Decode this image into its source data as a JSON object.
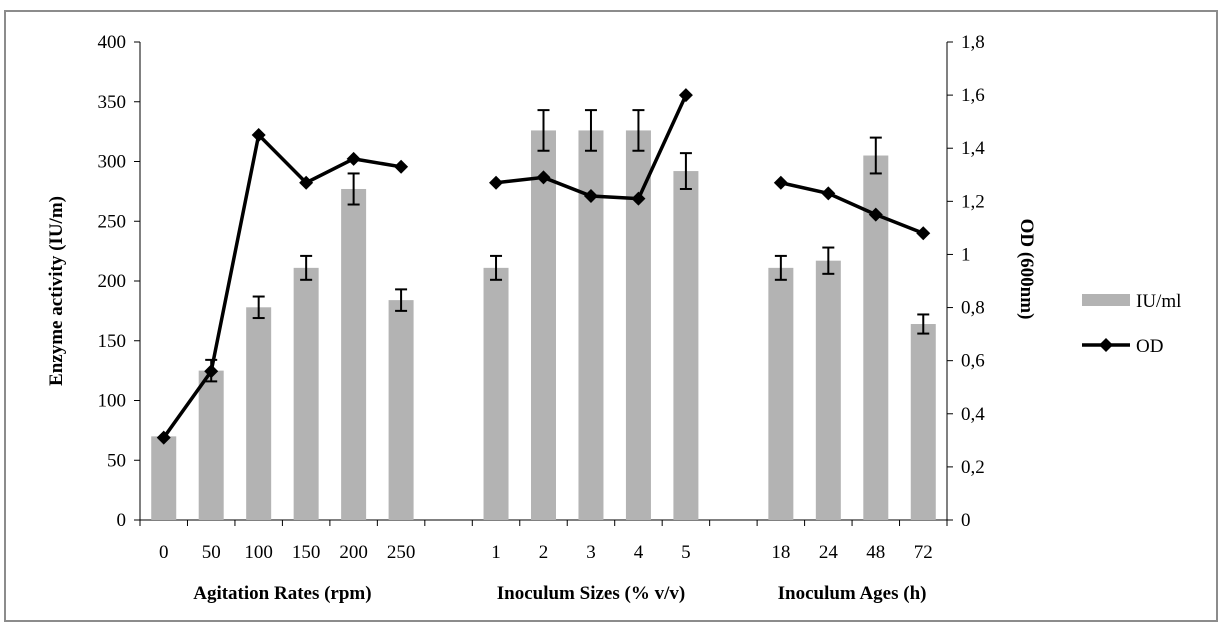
{
  "chart_data": {
    "type": "bar",
    "categories": [
      "0",
      "50",
      "100",
      "150",
      "200",
      "250",
      "",
      "1",
      "2",
      "3",
      "4",
      "5",
      "",
      "18",
      "24",
      "48",
      "72"
    ],
    "series": [
      {
        "name": "IU/ml",
        "kind": "bar",
        "axis": "left",
        "color": "#b3b3b3",
        "values": [
          70,
          125,
          178,
          211,
          277,
          184,
          null,
          211,
          326,
          326,
          326,
          292,
          null,
          211,
          217,
          305,
          164
        ],
        "error": [
          0,
          9,
          9,
          10,
          13,
          9,
          null,
          10,
          17,
          17,
          17,
          15,
          null,
          10,
          11,
          15,
          8
        ]
      },
      {
        "name": "OD",
        "kind": "line",
        "axis": "right",
        "color": "#000000",
        "marker": "diamond",
        "values": [
          0.31,
          0.56,
          1.45,
          1.27,
          1.36,
          1.33,
          null,
          1.27,
          1.29,
          1.22,
          1.21,
          1.6,
          null,
          1.27,
          1.23,
          1.15,
          1.08
        ]
      }
    ],
    "y_left": {
      "label": "Enzyme activity (IU/m)",
      "ylim": [
        0,
        400
      ],
      "ticks": [
        "0",
        "50",
        "100",
        "150",
        "200",
        "250",
        "300",
        "350",
        "400"
      ]
    },
    "y_right": {
      "label": "OD (600nm)",
      "ylim": [
        0,
        1.8
      ],
      "ticks": [
        "0",
        "0,2",
        "0,4",
        "0,6",
        "0,8",
        "1",
        "1,2",
        "1,4",
        "1,6",
        "1,8"
      ]
    },
    "group_labels": [
      "Agitation Rates (rpm)",
      "Inoculum Sizes (% v/v)",
      "Inoculum Ages (h)"
    ],
    "legend": {
      "position": "right",
      "items": [
        "IU/ml",
        "OD"
      ]
    },
    "grid": false
  }
}
